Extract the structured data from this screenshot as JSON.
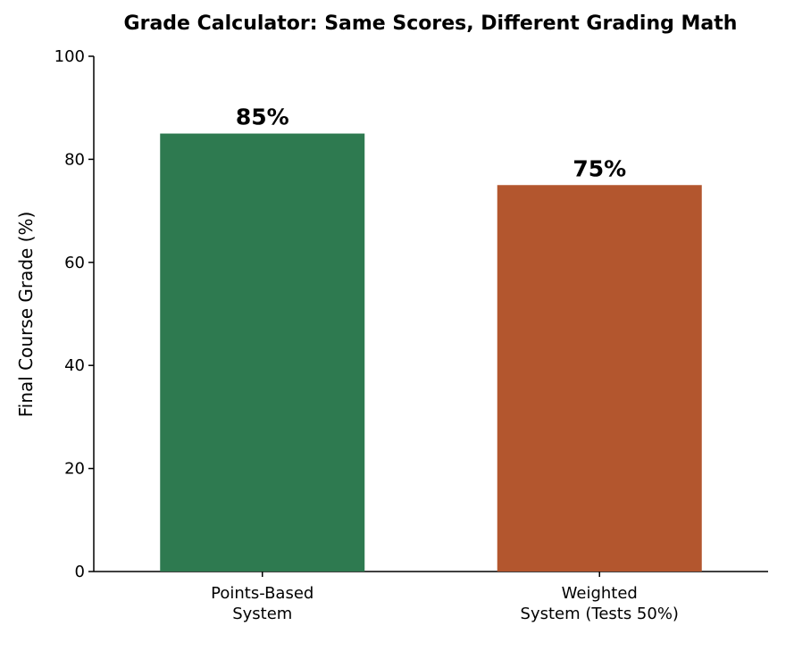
{
  "chart_data": {
    "type": "bar",
    "title": "Grade Calculator: Same Scores, Different Grading Math",
    "xlabel": "",
    "ylabel": "Final Course Grade (%)",
    "ylim": [
      0,
      100
    ],
    "yticks": [
      0,
      20,
      40,
      60,
      80,
      100
    ],
    "grid": false,
    "legend": "none",
    "categories": [
      [
        "Points-Based",
        "System"
      ],
      [
        "Weighted",
        "System (Tests 50%)"
      ]
    ],
    "values": [
      85,
      75
    ],
    "data_labels": [
      "85%",
      "75%"
    ],
    "colors": [
      "#2e7a50",
      "#b3562e"
    ]
  }
}
